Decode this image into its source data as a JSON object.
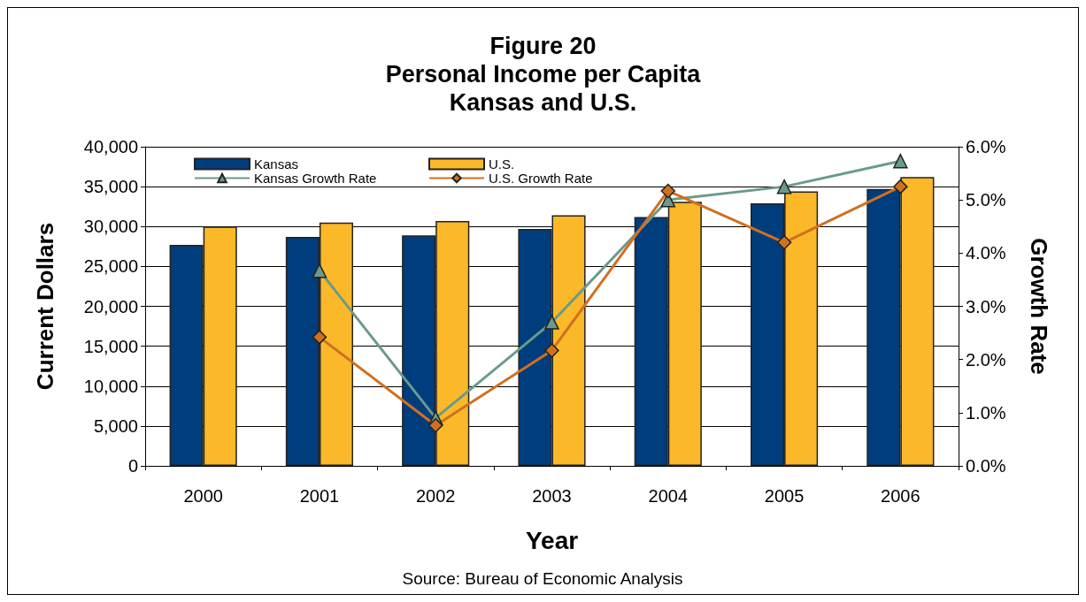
{
  "chart_data": {
    "type": "bar",
    "title": "Figure 20\nPersonal Income per Capita\nKansas and U.S.",
    "xlabel": "Year",
    "ylabel": "Current Dollars",
    "y2label": "Growth Rate",
    "categories": [
      "2000",
      "2001",
      "2002",
      "2003",
      "2004",
      "2005",
      "2006"
    ],
    "series": [
      {
        "name": "Kansas",
        "color": "#003d7d",
        "values": [
          27700,
          28700,
          28900,
          29700,
          31200,
          32900,
          34700
        ]
      },
      {
        "name": "U.S.",
        "color": "#fbb829",
        "values": [
          30000,
          30500,
          30700,
          31400,
          33100,
          34400,
          36200
        ]
      },
      {
        "name": "Kansas Growth Rate",
        "type": "line",
        "axis": "y2",
        "marker": "triangle",
        "color": "#6a9a8a",
        "values": [
          null,
          3.67,
          0.9,
          2.7,
          5.0,
          5.25,
          5.73
        ]
      },
      {
        "name": "U.S. Growth Rate",
        "type": "line",
        "axis": "y2",
        "marker": "diamond",
        "color": "#d07020",
        "values": [
          null,
          2.42,
          0.76,
          2.17,
          5.17,
          4.2,
          5.25
        ]
      }
    ],
    "ylim": [
      0,
      40000
    ],
    "yticks": [
      0,
      {
        "value": 5000,
        "label": "5,000"
      },
      {
        "value": 10000,
        "label": "10,000"
      },
      {
        "value": 15000,
        "label": "15,000"
      },
      {
        "value": 20000,
        "label": "20,000"
      },
      {
        "value": 25000,
        "label": "25,000"
      },
      {
        "value": 30000,
        "label": "30,000"
      },
      {
        "value": 35000,
        "label": "35,000"
      },
      {
        "value": 40000,
        "label": "40,000"
      }
    ],
    "y2lim": [
      0,
      6
    ],
    "y2ticks": [
      {
        "value": 0,
        "label": "0.0%"
      },
      {
        "value": 1,
        "label": "1.0%"
      },
      {
        "value": 2,
        "label": "2.0%"
      },
      {
        "value": 3,
        "label": "3.0%"
      },
      {
        "value": 4,
        "label": "4.0%"
      },
      {
        "value": 5,
        "label": "5.0%"
      },
      {
        "value": 6,
        "label": "6.0%"
      }
    ],
    "grid": "y",
    "legend": "top",
    "annotations": [
      "Source: Bureau of Economic Analysis"
    ]
  }
}
